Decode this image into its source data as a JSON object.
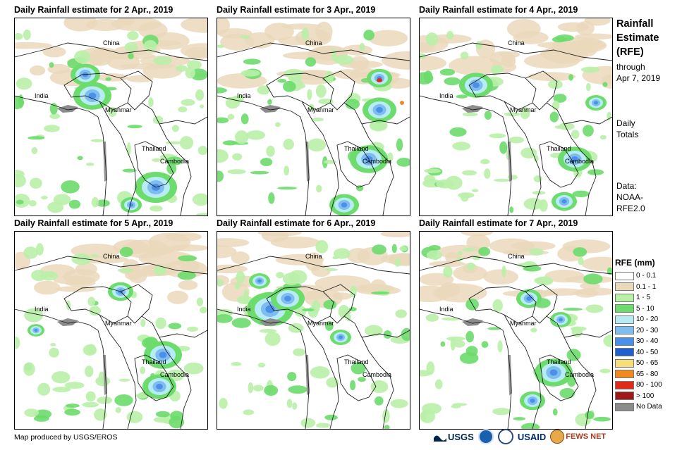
{
  "panels": [
    {
      "title": "Daily Rainfall estimate for 2 Apr., 2019"
    },
    {
      "title": "Daily Rainfall estimate for 3 Apr., 2019"
    },
    {
      "title": "Daily Rainfall estimate for 4 Apr., 2019"
    },
    {
      "title": "Daily Rainfall estimate for 5 Apr., 2019"
    },
    {
      "title": "Daily Rainfall estimate for 6 Apr., 2019"
    },
    {
      "title": "Daily Rainfall estimate for 7 Apr., 2019"
    }
  ],
  "map_labels": {
    "china": "China",
    "india": "India",
    "myanmar": "Myanmar",
    "thailand": "Thailand",
    "cambodia": "Cambodia"
  },
  "sidebar": {
    "title_line1": "Rainfall",
    "title_line2": "Estimate",
    "title_line3": "(RFE)",
    "through": "through",
    "date": "Apr 7, 2019",
    "daily": "Daily",
    "totals": "Totals",
    "data_label": "Data:",
    "data_source1": "NOAA-",
    "data_source2": "RFE2.0"
  },
  "legend": {
    "title": "RFE (mm)",
    "items": [
      {
        "label": "0 - 0.1",
        "color": "#ffffff"
      },
      {
        "label": "0.1 - 1",
        "color": "#ead8bb"
      },
      {
        "label": "1 - 5",
        "color": "#b9f0a8"
      },
      {
        "label": "5 - 10",
        "color": "#6cdc6c"
      },
      {
        "label": "10 - 20",
        "color": "#b8ecf4"
      },
      {
        "label": "20 - 30",
        "color": "#7fbcf0"
      },
      {
        "label": "30 - 40",
        "color": "#4a90e8"
      },
      {
        "label": "40 - 50",
        "color": "#1f5fd0"
      },
      {
        "label": "50 - 65",
        "color": "#f5df7a"
      },
      {
        "label": "65 - 80",
        "color": "#f08a20"
      },
      {
        "label": "80 - 100",
        "color": "#e02a1a"
      },
      {
        "label": "> 100",
        "color": "#a01818"
      },
      {
        "label": "No Data",
        "color": "#8c8c8c"
      }
    ]
  },
  "footer": {
    "credit": "Map produced by USGS/EROS"
  },
  "logos": {
    "usgs": "USGS",
    "usaid": "USAID",
    "fewsnet": "FEWS NET"
  }
}
